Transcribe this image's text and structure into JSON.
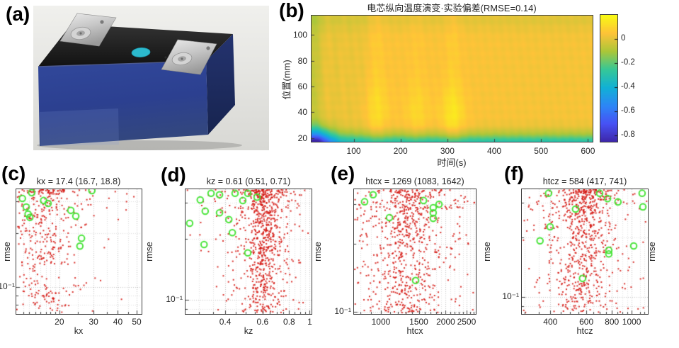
{
  "panel_labels": {
    "a": "(a)",
    "b": "(b)",
    "c": "(c)",
    "d": "(d)",
    "e": "(e)",
    "f": "(f)"
  },
  "photo": {
    "description": "prismatic lithium-ion battery cell photo: blue body, black top cover, two silver terminal tabs with round bosses, cyan oval vent sticker",
    "colors": {
      "body": "#2e4496",
      "top": "#1d1d1d",
      "terminal": "#c9c9c9",
      "sticker": "#29b7cc",
      "background": "#e9e9e6"
    }
  },
  "ui": {
    "extra_ylabel": "rmse"
  },
  "chart_data": [
    {
      "panel": "b",
      "type": "heatmap",
      "title": "电芯纵向温度演变·实验偏差(RMSE=0.14)",
      "xlabel": "时间(s)",
      "ylabel": "位置(mm)",
      "xlim": [
        10,
        610
      ],
      "ylim": [
        17,
        115
      ],
      "x_ticks": [
        100,
        200,
        300,
        400,
        500,
        600
      ],
      "x_tick_labels": [
        "100",
        "200",
        "300",
        "400",
        "500",
        "600"
      ],
      "y_ticks": [
        20,
        40,
        60,
        80,
        100
      ],
      "y_tick_labels": [
        "20",
        "40",
        "60",
        "80",
        "100"
      ],
      "colormap": "parula",
      "colorbar_range": [
        -0.85,
        0.2
      ],
      "colorbar_ticks": [
        0,
        -0.2,
        -0.4,
        -0.6,
        -0.8
      ],
      "colorbar_tick_labels": [
        "0",
        "-0.2",
        "-0.4",
        "-0.6",
        "-0.8"
      ],
      "grid": false,
      "features": {
        "base_value": 0.045,
        "bright_spots": [
          {
            "t": 150,
            "y": 42,
            "amp": 0.05
          },
          {
            "t": 235,
            "y": 40,
            "amp": 0.045
          },
          {
            "t": 312,
            "y": 38,
            "amp": 0.075
          }
        ],
        "bright_stripes": [
          {
            "t": 150,
            "amp": 0.025
          },
          {
            "t": 235,
            "amp": 0.015
          },
          {
            "t": 312,
            "amp": 0.03
          }
        ],
        "dark_stripes": [
          {
            "t": 62,
            "amp": 0.035
          },
          {
            "t": 92,
            "amp": 0.03
          },
          {
            "t": 118,
            "amp": 0.025
          }
        ],
        "bottom_cool_band": {
          "y_center": 13,
          "amp": -0.4
        },
        "bottom_left_corner": {
          "t": 18,
          "y": 14,
          "amp": -0.55
        },
        "left_edge_cool": {
          "t": 14,
          "amp": -0.1
        },
        "top_edge_cool": {
          "y": 113,
          "amp": -0.04
        }
      }
    },
    {
      "panel": "c",
      "type": "scatter",
      "title": "kx = 17.4 (16.7, 18.8)",
      "xlabel": "kx",
      "ylabel": "rmse",
      "xscale": "log",
      "yscale": "log",
      "xlim": [
        12,
        53
      ],
      "ylim": [
        0.071,
        0.35
      ],
      "x_ticks": [
        20,
        30,
        40,
        50
      ],
      "x_tick_labels": [
        "20",
        "30",
        "40",
        "50"
      ],
      "x_minor_ticks": [
        13,
        14,
        15,
        16,
        17,
        18,
        19,
        25,
        35,
        45
      ],
      "y_tick": {
        "value": 0.1,
        "label": "10⁻¹"
      },
      "y_minor_gridlines": [
        0.08,
        0.09,
        0.2,
        0.3
      ],
      "best_fit": {
        "value": 17.4,
        "ci_low": 16.7,
        "ci_high": 18.8
      },
      "red_cloud": {
        "count": 430,
        "x_center": 16.5,
        "x_log_sigma": 0.07,
        "halo_fraction": 0.35,
        "halo_log_sigma": 0.16,
        "outlier_fraction": 0.04,
        "y_top_bias": 1.7,
        "seed": 11
      },
      "green_points": [
        [
          14.4,
          0.335
        ],
        [
          12.9,
          0.311
        ],
        [
          13.5,
          0.279
        ],
        [
          13.8,
          0.255
        ],
        [
          14.1,
          0.244
        ],
        [
          16.6,
          0.303
        ],
        [
          17.5,
          0.292
        ],
        [
          29.4,
          0.344
        ],
        [
          22.9,
          0.267
        ],
        [
          24.3,
          0.248
        ],
        [
          26.0,
          0.187
        ],
        [
          25.5,
          0.169
        ]
      ]
    },
    {
      "panel": "d",
      "type": "scatter",
      "title": "kz = 0.61 (0.51, 0.71)",
      "xlabel": "kz",
      "ylabel": "rmse",
      "xscale": "log",
      "yscale": "log",
      "xlim": [
        0.26,
        1.02
      ],
      "ylim": [
        0.085,
        0.35
      ],
      "x_ticks": [
        0.4,
        0.6,
        0.8,
        1
      ],
      "x_tick_labels": [
        "0.4",
        "0.6",
        "0.8",
        "1"
      ],
      "x_minor_ticks": [
        0.3,
        0.35,
        0.45,
        0.5,
        0.55,
        0.65,
        0.7,
        0.75,
        0.85,
        0.9,
        0.95
      ],
      "y_tick": {
        "value": 0.1,
        "label": "10⁻¹"
      },
      "y_minor_gridlines": [
        0.09,
        0.2,
        0.3
      ],
      "best_fit": {
        "value": 0.61,
        "ci_low": 0.51,
        "ci_high": 0.71
      },
      "red_cloud": {
        "count": 820,
        "x_center": 0.6,
        "x_log_sigma": 0.04,
        "halo_fraction": 0.35,
        "halo_log_sigma": 0.11,
        "outlier_fraction": 0.07,
        "y_top_bias": 1.45,
        "seed": 22
      },
      "green_points": [
        [
          0.343,
          0.334
        ],
        [
          0.376,
          0.329
        ],
        [
          0.445,
          0.334
        ],
        [
          0.511,
          0.334
        ],
        [
          0.305,
          0.31
        ],
        [
          0.484,
          0.308
        ],
        [
          0.565,
          0.32
        ],
        [
          0.272,
          0.238
        ],
        [
          0.322,
          0.273
        ],
        [
          0.376,
          0.268
        ],
        [
          0.416,
          0.248
        ],
        [
          0.432,
          0.214
        ],
        [
          0.318,
          0.187
        ],
        [
          0.511,
          0.17
        ]
      ]
    },
    {
      "panel": "e",
      "type": "scatter",
      "title": "htcx = 1269 (1083, 1642)",
      "xlabel": "htcx",
      "ylabel": "rmse",
      "xscale": "log",
      "yscale": "log",
      "xlim": [
        750,
        2760
      ],
      "ylim": [
        0.098,
        0.35
      ],
      "x_ticks": [
        1000,
        1500,
        2000,
        2500
      ],
      "x_tick_labels": [
        "1000",
        "1500",
        "2000",
        "2500"
      ],
      "x_minor_ticks": [
        800,
        900,
        1100,
        1200,
        1300,
        1400,
        1600,
        1700,
        1800,
        1900,
        2100,
        2200,
        2300,
        2400,
        2600,
        2700
      ],
      "y_tick": {
        "value": 0.1,
        "label": "10⁻¹"
      },
      "y_minor_gridlines": [
        0.2,
        0.3
      ],
      "best_fit": {
        "value": 1269,
        "ci_low": 1083,
        "ci_high": 1642
      },
      "red_cloud": {
        "count": 760,
        "x_center": 1300,
        "x_log_sigma": 0.07,
        "halo_fraction": 0.45,
        "halo_log_sigma": 0.16,
        "outlier_fraction": 0.09,
        "y_top_bias": 1.35,
        "seed": 33
      },
      "green_points": [
        [
          920,
          0.331
        ],
        [
          840,
          0.308
        ],
        [
          1578,
          0.312
        ],
        [
          1862,
          0.3
        ],
        [
          1750,
          0.29
        ],
        [
          1750,
          0.275
        ],
        [
          1750,
          0.26
        ],
        [
          1096,
          0.262
        ],
        [
          1449,
          0.138
        ]
      ]
    },
    {
      "panel": "f",
      "type": "scatter",
      "title": "htcz = 584 (417, 741)",
      "xlabel": "htcz",
      "ylabel": "rmse",
      "xscale": "log",
      "yscale": "log",
      "xlim": [
        290,
        1200
      ],
      "ylim": [
        0.082,
        0.35
      ],
      "x_ticks": [
        400,
        600,
        800,
        1000
      ],
      "x_tick_labels": [
        "400",
        "600",
        "800",
        "1000"
      ],
      "x_minor_ticks": [
        300,
        350,
        450,
        500,
        550,
        650,
        700,
        750,
        850,
        900,
        950,
        1100,
        1150
      ],
      "y_tick": {
        "value": 0.1,
        "label": "10⁻¹"
      },
      "y_minor_gridlines": [
        0.09,
        0.2,
        0.3
      ],
      "best_fit": {
        "value": 584,
        "ci_low": 417,
        "ci_high": 741
      },
      "red_cloud": {
        "count": 760,
        "x_center": 580,
        "x_log_sigma": 0.06,
        "halo_fraction": 0.4,
        "halo_log_sigma": 0.14,
        "outlier_fraction": 0.07,
        "y_top_bias": 1.5,
        "seed": 44
      },
      "green_points": [
        [
          392,
          0.334
        ],
        [
          531,
          0.278
        ],
        [
          697,
          0.334
        ],
        [
          762,
          0.314
        ],
        [
          857,
          0.302
        ],
        [
          1125,
          0.334
        ],
        [
          1135,
          0.285
        ],
        [
          399,
          0.226
        ],
        [
          356,
          0.192
        ],
        [
          773,
          0.172
        ],
        [
          773,
          0.165
        ],
        [
          1023,
          0.181
        ],
        [
          575,
          0.124
        ]
      ]
    }
  ]
}
